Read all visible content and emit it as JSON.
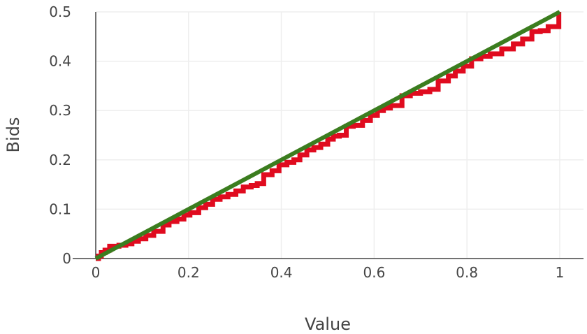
{
  "chart_data": {
    "type": "line",
    "title": "",
    "xlabel": "Value",
    "ylabel": "Bids",
    "xlim": [
      0,
      1
    ],
    "ylim": [
      0,
      0.5
    ],
    "xticks": [
      0,
      0.2,
      0.4,
      0.6,
      0.8,
      1
    ],
    "xtick_labels": [
      "0",
      "0.2",
      "0.4",
      "0.6",
      "0.8",
      "1"
    ],
    "yticks": [
      0,
      0.1,
      0.2,
      0.3,
      0.4,
      0.5
    ],
    "ytick_labels": [
      "0",
      "0.1",
      "0.2",
      "0.3",
      "0.4",
      "0.5"
    ],
    "grid": true,
    "legend": "none",
    "series": [
      {
        "color": "#e00b1f",
        "style": "step",
        "x": [
          0,
          0.006,
          0.012,
          0.02,
          0.03,
          0.05,
          0.065,
          0.078,
          0.092,
          0.108,
          0.125,
          0.145,
          0.158,
          0.175,
          0.19,
          0.203,
          0.222,
          0.237,
          0.252,
          0.268,
          0.285,
          0.302,
          0.318,
          0.335,
          0.348,
          0.362,
          0.38,
          0.395,
          0.412,
          0.427,
          0.44,
          0.455,
          0.47,
          0.485,
          0.5,
          0.512,
          0.525,
          0.54,
          0.555,
          0.575,
          0.592,
          0.607,
          0.62,
          0.635,
          0.66,
          0.678,
          0.7,
          0.72,
          0.738,
          0.76,
          0.775,
          0.792,
          0.81,
          0.83,
          0.85,
          0.875,
          0.9,
          0.92,
          0.94,
          0.958,
          0.975,
          0.998
        ],
        "y": [
          0,
          0.005,
          0.012,
          0.017,
          0.025,
          0.027,
          0.03,
          0.035,
          0.04,
          0.047,
          0.055,
          0.068,
          0.075,
          0.08,
          0.088,
          0.093,
          0.103,
          0.11,
          0.12,
          0.125,
          0.13,
          0.137,
          0.145,
          0.148,
          0.152,
          0.17,
          0.178,
          0.19,
          0.195,
          0.2,
          0.21,
          0.22,
          0.225,
          0.232,
          0.242,
          0.248,
          0.25,
          0.268,
          0.27,
          0.28,
          0.29,
          0.3,
          0.305,
          0.31,
          0.33,
          0.335,
          0.338,
          0.343,
          0.36,
          0.37,
          0.38,
          0.39,
          0.405,
          0.41,
          0.415,
          0.425,
          0.435,
          0.445,
          0.46,
          0.462,
          0.47,
          0.5
        ]
      },
      {
        "color": "#3b7d1f",
        "style": "line",
        "x": [
          0,
          1
        ],
        "y": [
          0,
          0.5
        ]
      }
    ]
  }
}
